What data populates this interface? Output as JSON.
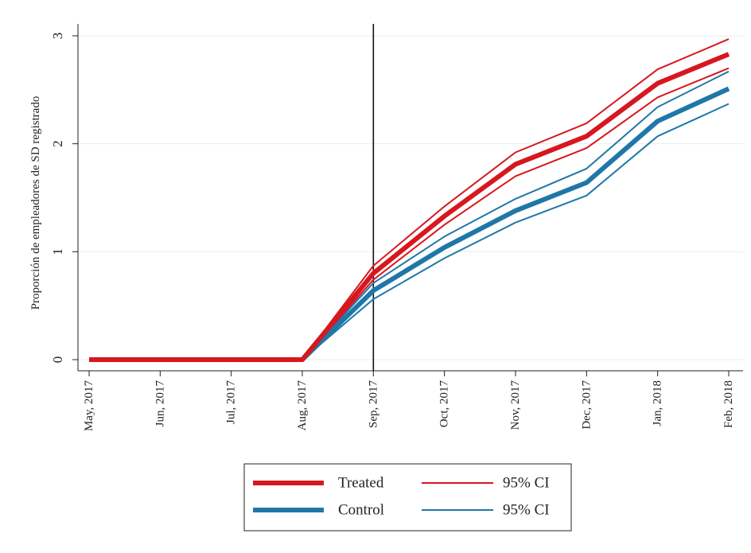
{
  "chart_data": {
    "type": "line",
    "title": "",
    "xlabel": "",
    "ylabel": "Proporción de empleadores de SD registrado",
    "categories": [
      "May, 2017",
      "Jun, 2017",
      "Jul, 2017",
      "Aug, 2017",
      "Sep, 2017",
      "Oct, 2017",
      "Nov, 2017",
      "Dec, 2017",
      "Jan, 2018",
      "Feb, 2018"
    ],
    "ylim": [
      0,
      3
    ],
    "yticks": [
      "0",
      "1",
      "2",
      "3"
    ],
    "grid": true,
    "vertical_reference_line": "Sep, 2017",
    "legend_position": "bottom",
    "series": [
      {
        "name": "Treated",
        "role": "estimate",
        "color": "#d7171f",
        "values": [
          0,
          0,
          0,
          0,
          0.8,
          1.33,
          1.81,
          2.07,
          2.56,
          2.83
        ]
      },
      {
        "name": "95% CI",
        "role": "treated-ci-upper",
        "color": "#d7171f",
        "values": [
          0,
          0,
          0,
          0,
          0.87,
          1.42,
          1.92,
          2.19,
          2.69,
          2.97
        ]
      },
      {
        "name": "95% CI",
        "role": "treated-ci-lower",
        "color": "#d7171f",
        "values": [
          0,
          0,
          0,
          0,
          0.74,
          1.25,
          1.7,
          1.96,
          2.43,
          2.7
        ]
      },
      {
        "name": "Control",
        "role": "estimate",
        "color": "#1f77a8",
        "values": [
          0,
          0,
          0,
          0,
          0.64,
          1.04,
          1.38,
          1.64,
          2.21,
          2.51
        ]
      },
      {
        "name": "95% CI",
        "role": "control-ci-upper",
        "color": "#1f77a8",
        "values": [
          0,
          0,
          0,
          0,
          0.71,
          1.14,
          1.49,
          1.77,
          2.34,
          2.67
        ]
      },
      {
        "name": "95% CI",
        "role": "control-ci-lower",
        "color": "#1f77a8",
        "values": [
          0,
          0,
          0,
          0,
          0.56,
          0.94,
          1.27,
          1.52,
          2.07,
          2.37
        ]
      }
    ],
    "legend": [
      {
        "label": "Treated",
        "color": "#d7171f",
        "style": "thick"
      },
      {
        "label": "95% CI",
        "color": "#d7171f",
        "style": "thin"
      },
      {
        "label": "Control",
        "color": "#1f77a8",
        "style": "thick"
      },
      {
        "label": "95% CI",
        "color": "#1f77a8",
        "style": "thin"
      }
    ]
  }
}
